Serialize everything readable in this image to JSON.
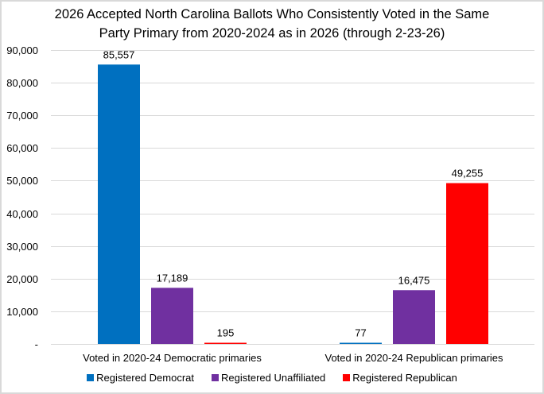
{
  "chart_data": {
    "type": "bar",
    "title_lines": [
      "2026 Accepted North Carolina Ballots Who Consistently Voted in the Same",
      "Party Primary from 2020-2024 as in 2026 (through 2-23-26)"
    ],
    "categories": [
      "Voted in 2020-24 Democratic primaries",
      "Voted in 2020-24 Republican primaries"
    ],
    "series": [
      {
        "name": "Registered Democrat",
        "color": "#0070c0",
        "values": [
          85557,
          77
        ],
        "labels": [
          "85,557",
          "77"
        ]
      },
      {
        "name": "Registered Unaffiliated",
        "color": "#7030a0",
        "values": [
          17189,
          16475
        ],
        "labels": [
          "17,189",
          "16,475"
        ]
      },
      {
        "name": "Registered Republican",
        "color": "#ff0000",
        "values": [
          195,
          49255
        ],
        "labels": [
          "195",
          "49,255"
        ]
      }
    ],
    "ylim": [
      0,
      90000
    ],
    "yticks": [
      0,
      10000,
      20000,
      30000,
      40000,
      50000,
      60000,
      70000,
      80000,
      90000
    ],
    "ytick_labels": [
      "-",
      "10,000",
      "20,000",
      "30,000",
      "40,000",
      "50,000",
      "60,000",
      "70,000",
      "80,000",
      "90,000"
    ],
    "xlabel": "",
    "ylabel": "",
    "grid": true,
    "legend_position": "bottom"
  }
}
